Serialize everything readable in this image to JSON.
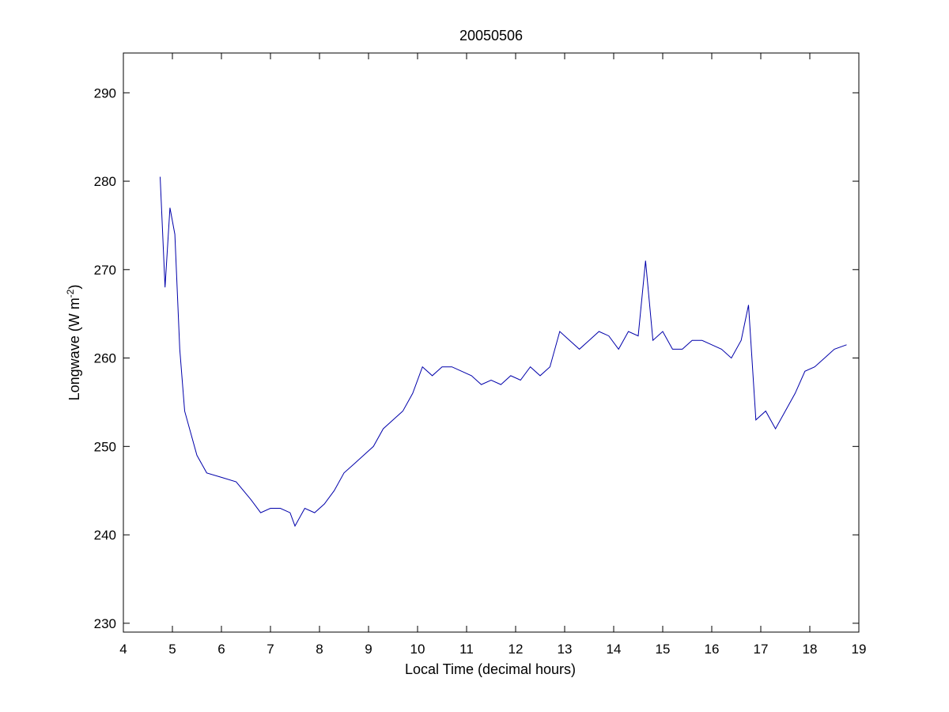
{
  "chart_data": {
    "type": "line",
    "title": "20050506",
    "xlabel": "Local Time (decimal hours)",
    "ylabel": {
      "base": "Longwave (W m",
      "sup": "-2",
      "end": ")"
    },
    "xlim": [
      4,
      19
    ],
    "ylim": [
      229,
      294.5
    ],
    "xticks": [
      4,
      5,
      6,
      7,
      8,
      9,
      10,
      11,
      12,
      13,
      14,
      15,
      16,
      17,
      18,
      19
    ],
    "yticks": [
      230,
      240,
      250,
      260,
      270,
      280,
      290
    ],
    "grid": false,
    "line_color": "#0000aa",
    "series": [
      {
        "x": [
          4.75,
          4.85,
          4.95,
          5.05,
          5.15,
          5.25,
          5.35,
          5.5,
          5.7,
          6.0,
          6.3,
          6.6,
          6.8,
          7.0,
          7.2,
          7.4,
          7.5,
          7.7,
          7.9,
          8.1,
          8.3,
          8.5,
          8.7,
          8.9,
          9.1,
          9.3,
          9.5,
          9.7,
          9.9,
          10.1,
          10.3,
          10.5,
          10.7,
          10.9,
          11.1,
          11.3,
          11.5,
          11.7,
          11.9,
          12.1,
          12.3,
          12.5,
          12.7,
          12.9,
          13.1,
          13.3,
          13.5,
          13.7,
          13.9,
          14.1,
          14.3,
          14.5,
          14.65,
          14.8,
          15.0,
          15.2,
          15.4,
          15.6,
          15.8,
          16.0,
          16.2,
          16.4,
          16.6,
          16.75,
          16.9,
          17.1,
          17.3,
          17.5,
          17.7,
          17.9,
          18.1,
          18.3,
          18.5,
          18.75
        ],
        "y": [
          280.5,
          268,
          277,
          274,
          261,
          254,
          252,
          249,
          247,
          246.5,
          246,
          244,
          242.5,
          243,
          243,
          242.5,
          241,
          243,
          242.5,
          243.5,
          245,
          247,
          248,
          249,
          250,
          252,
          253,
          254,
          256,
          259,
          258,
          259,
          259,
          258.5,
          258,
          257,
          257.5,
          257,
          258,
          257.5,
          259,
          258,
          259,
          263,
          262,
          261,
          262,
          263,
          262.5,
          261,
          263,
          262.5,
          271,
          262,
          263,
          261,
          261,
          262,
          262,
          261.5,
          261,
          260,
          262,
          266,
          253,
          254,
          252,
          254,
          256,
          258.5,
          259,
          260,
          261,
          261.5
        ]
      }
    ]
  }
}
